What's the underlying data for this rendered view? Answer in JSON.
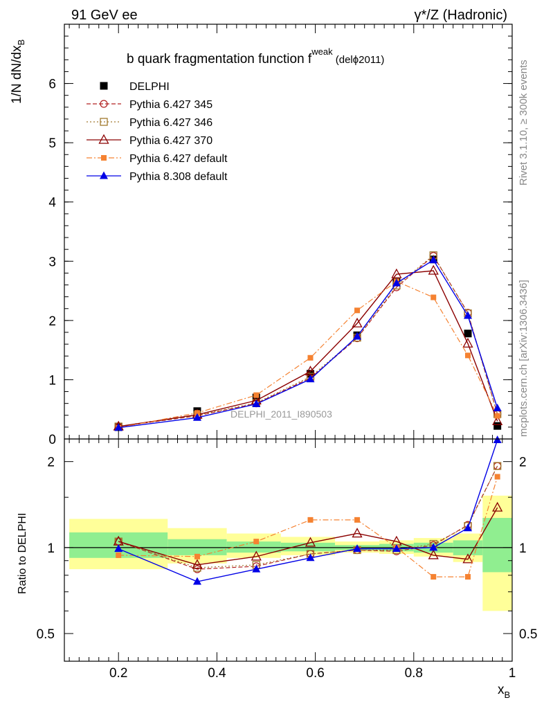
{
  "header": {
    "left": "91 GeV ee",
    "right": "γ*/Z (Hadronic)"
  },
  "side_labels": {
    "rivet": "Rivet 3.1.10, ≥ 300k events",
    "mcplots": "mcplots.cern.ch [arXiv:1306.3436]"
  },
  "colors": {
    "delphi": "#000000",
    "p345": "#b22222",
    "p346": "#a0782c",
    "p370": "#8b0000",
    "p6default": "#f58231",
    "p8default": "#0000e6",
    "band_green": "#90ee90",
    "band_yellow": "#ffff99"
  },
  "chart_data": [
    {
      "type": "line",
      "title": "b quark fragmentation function f",
      "title_sup": "weak",
      "title_suffix": " (delϕ2011)",
      "watermark": "DELPHI_2011_I890503",
      "ylabel": "1/N dN/dx",
      "ylabel_sub": "B",
      "ylim": [
        0,
        7
      ],
      "xlim": [
        0.09,
        1.0
      ],
      "yticks": [
        0,
        1,
        2,
        3,
        4,
        5,
        6
      ],
      "grid": false,
      "legend_position": "top-left",
      "x": [
        0.2,
        0.36,
        0.48,
        0.59,
        0.685,
        0.765,
        0.84,
        0.91,
        0.97
      ],
      "series": [
        {
          "name": "DELPHI",
          "key": "delphi",
          "style": "data",
          "marker": "square-filled",
          "values": [
            0.2,
            0.47,
            0.7,
            1.1,
            1.75,
            2.65,
            3.03,
            1.78,
            0.22
          ]
        },
        {
          "name": "Pythia 6.427 345",
          "key": "p345",
          "style": "dash",
          "marker": "circle-open",
          "values": [
            0.21,
            0.39,
            0.6,
            1.03,
            1.7,
            2.56,
            3.09,
            2.13,
            0.42
          ]
        },
        {
          "name": "Pythia 6.427 346",
          "key": "p346",
          "style": "dot",
          "marker": "square-open",
          "values": [
            0.21,
            0.4,
            0.61,
            1.05,
            1.71,
            2.59,
            3.1,
            2.12,
            0.42
          ]
        },
        {
          "name": "Pythia 6.427 370",
          "key": "p370",
          "style": "solid",
          "marker": "triangle-open",
          "values": [
            0.21,
            0.41,
            0.65,
            1.14,
            1.95,
            2.78,
            2.84,
            1.61,
            0.3
          ]
        },
        {
          "name": "Pythia 6.427 default",
          "key": "p6default",
          "style": "dashdot",
          "marker": "square-small",
          "values": [
            0.19,
            0.44,
            0.74,
            1.37,
            2.17,
            2.66,
            2.39,
            1.41,
            0.39
          ]
        },
        {
          "name": "Pythia 8.308 default",
          "key": "p8default",
          "style": "solid",
          "marker": "triangle-filled",
          "values": [
            0.19,
            0.36,
            0.59,
            1.01,
            1.73,
            2.63,
            3.02,
            2.08,
            0.52
          ]
        }
      ]
    },
    {
      "type": "line",
      "ylabel": "Ratio to DELPHI",
      "xlabel": "x",
      "xlabel_sub": "B",
      "ylim": [
        0.4,
        2.4
      ],
      "xlim": [
        0.09,
        1.0
      ],
      "ytick_labels": [
        "0.5",
        "1",
        "2"
      ],
      "ytick_values": [
        0.5,
        1,
        2
      ],
      "xtick_labels": [
        "0.2",
        "0.4",
        "0.6",
        "0.8",
        "1"
      ],
      "xtick_values": [
        0.2,
        0.4,
        0.6,
        0.8,
        1.0
      ],
      "reference": 1,
      "bands": [
        {
          "x_lo": 0.1,
          "x_hi": 0.3,
          "green": [
            0.92,
            1.13
          ],
          "yellow": [
            0.84,
            1.26
          ]
        },
        {
          "x_lo": 0.3,
          "x_hi": 0.42,
          "green": [
            0.94,
            1.07
          ],
          "yellow": [
            0.88,
            1.17
          ]
        },
        {
          "x_lo": 0.42,
          "x_hi": 0.53,
          "green": [
            0.96,
            1.05
          ],
          "yellow": [
            0.92,
            1.12
          ]
        },
        {
          "x_lo": 0.53,
          "x_hi": 0.64,
          "green": [
            0.97,
            1.04
          ],
          "yellow": [
            0.94,
            1.09
          ]
        },
        {
          "x_lo": 0.64,
          "x_hi": 0.73,
          "green": [
            0.98,
            1.02
          ],
          "yellow": [
            0.96,
            1.05
          ]
        },
        {
          "x_lo": 0.73,
          "x_hi": 0.8,
          "green": [
            0.97,
            1.03
          ],
          "yellow": [
            0.95,
            1.06
          ]
        },
        {
          "x_lo": 0.8,
          "x_hi": 0.88,
          "green": [
            0.96,
            1.04
          ],
          "yellow": [
            0.93,
            1.08
          ]
        },
        {
          "x_lo": 0.88,
          "x_hi": 0.94,
          "green": [
            0.94,
            1.06
          ],
          "yellow": [
            0.89,
            1.12
          ]
        },
        {
          "x_lo": 0.94,
          "x_hi": 1.0,
          "green": [
            0.82,
            1.27
          ],
          "yellow": [
            0.6,
            1.52
          ]
        }
      ],
      "x": [
        0.2,
        0.36,
        0.48,
        0.59,
        0.685,
        0.765,
        0.84,
        0.91,
        0.97
      ],
      "series": [
        {
          "name": "Pythia 6.427 345",
          "key": "p345",
          "style": "dash",
          "marker": "circle-open",
          "values": [
            1.05,
            0.84,
            0.86,
            0.95,
            0.98,
            0.97,
            1.02,
            1.2,
            1.93
          ]
        },
        {
          "name": "Pythia 6.427 346",
          "key": "p346",
          "style": "dot",
          "marker": "square-open",
          "values": [
            1.05,
            0.85,
            0.87,
            0.95,
            0.98,
            0.98,
            1.03,
            1.19,
            1.93
          ]
        },
        {
          "name": "Pythia 6.427 370",
          "key": "p370",
          "style": "solid",
          "marker": "triangle-open",
          "values": [
            1.05,
            0.87,
            0.93,
            1.04,
            1.12,
            1.05,
            0.94,
            0.91,
            1.38
          ]
        },
        {
          "name": "Pythia 6.427 default",
          "key": "p6default",
          "style": "dashdot",
          "marker": "square-small",
          "values": [
            0.94,
            0.93,
            1.05,
            1.25,
            1.25,
            1.0,
            0.79,
            0.79,
            1.77
          ]
        },
        {
          "name": "Pythia 8.308 default",
          "key": "p8default",
          "style": "solid",
          "marker": "triangle-filled",
          "values": [
            0.99,
            0.76,
            0.84,
            0.92,
            0.99,
            0.99,
            1.0,
            1.17,
            2.38
          ]
        }
      ]
    }
  ]
}
